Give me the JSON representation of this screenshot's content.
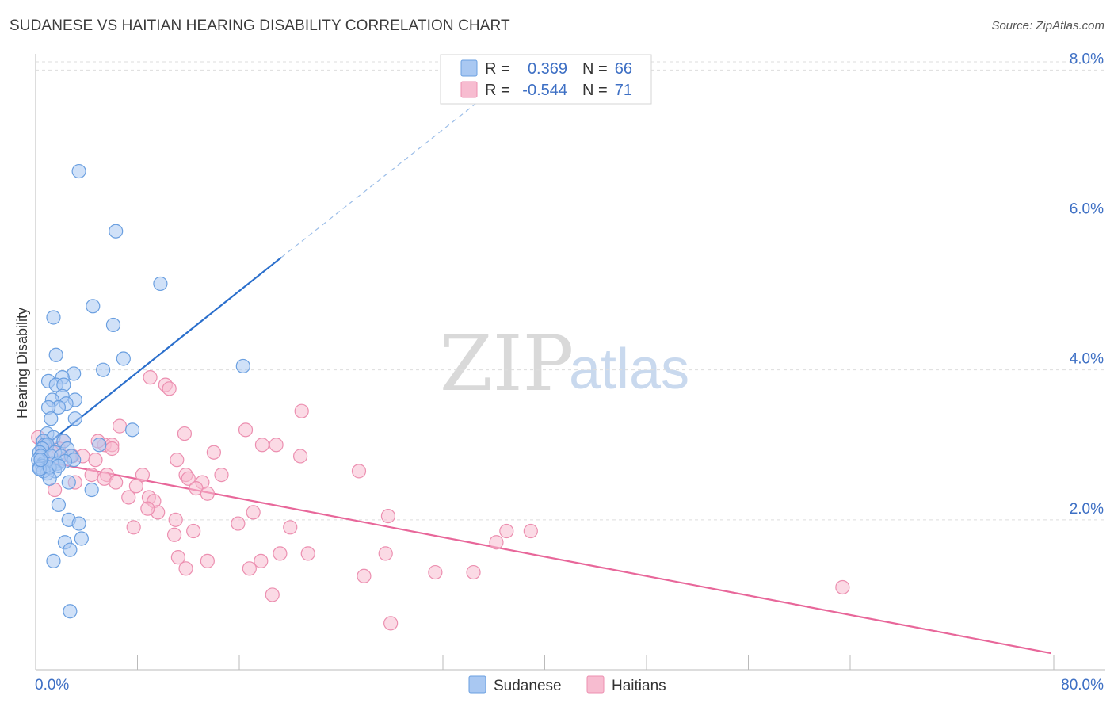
{
  "header": {
    "title": "SUDANESE VS HAITIAN HEARING DISABILITY CORRELATION CHART",
    "source": "Source: ZipAtlas.com"
  },
  "watermark": {
    "zip": "ZIP",
    "atlas": "atlas"
  },
  "colors": {
    "sudanese_fill": "#a9c8f2",
    "sudanese_stroke": "#6a9fe0",
    "sudanese_line": "#2b6fcc",
    "haitians_fill": "#f7bcd0",
    "haitians_stroke": "#ec8fb0",
    "haitians_line": "#e8679a",
    "tick_text": "#3d6fc4",
    "grid": "#dddddd"
  },
  "legend": {
    "rows": [
      {
        "r_label": "R =",
        "r_value": "0.369",
        "n_label": "N =",
        "n_value": "66"
      },
      {
        "r_label": "R =",
        "r_value": "-0.544",
        "n_label": "N =",
        "n_value": "71"
      }
    ],
    "placement": "top-center"
  },
  "chart_data": {
    "type": "scatter",
    "title": "SUDANESE VS HAITIAN HEARING DISABILITY CORRELATION CHART",
    "xlabel": "",
    "ylabel": "Hearing Disability",
    "xlim": [
      0,
      80
    ],
    "ylim": [
      0,
      8.3
    ],
    "x_tick_labels": [
      "0.0%",
      "80.0%"
    ],
    "y_ticks": [
      2,
      4,
      6,
      8
    ],
    "y_tick_labels": [
      "2.0%",
      "4.0%",
      "6.0%",
      "8.0%"
    ],
    "grid": true,
    "series": [
      {
        "name": "Sudanese",
        "trend": {
          "x_start": 0.1,
          "y_start": 2.9,
          "x_solid_end": 19.3,
          "y_solid_end": 5.5,
          "x_end": 36.8,
          "y_end": 7.85
        },
        "points": [
          [
            3.4,
            6.65
          ],
          [
            6.3,
            5.85
          ],
          [
            9.8,
            5.15
          ],
          [
            4.5,
            4.85
          ],
          [
            6.1,
            4.6
          ],
          [
            1.4,
            4.7
          ],
          [
            16.3,
            4.05
          ],
          [
            1.6,
            4.2
          ],
          [
            6.9,
            4.15
          ],
          [
            5.3,
            4.0
          ],
          [
            3.0,
            3.95
          ],
          [
            2.1,
            3.9
          ],
          [
            1.0,
            3.85
          ],
          [
            1.6,
            3.8
          ],
          [
            2.2,
            3.8
          ],
          [
            2.1,
            3.65
          ],
          [
            1.3,
            3.6
          ],
          [
            3.1,
            3.6
          ],
          [
            2.4,
            3.55
          ],
          [
            1.8,
            3.5
          ],
          [
            1.0,
            3.5
          ],
          [
            1.2,
            3.35
          ],
          [
            3.1,
            3.35
          ],
          [
            7.6,
            3.2
          ],
          [
            0.9,
            3.15
          ],
          [
            1.4,
            3.1
          ],
          [
            2.2,
            3.05
          ],
          [
            0.6,
            3.05
          ],
          [
            0.7,
            3.0
          ],
          [
            0.9,
            3.0
          ],
          [
            5.0,
            3.0
          ],
          [
            0.5,
            2.95
          ],
          [
            0.3,
            2.9
          ],
          [
            2.5,
            2.95
          ],
          [
            1.5,
            2.9
          ],
          [
            0.4,
            2.85
          ],
          [
            1.2,
            2.85
          ],
          [
            2.0,
            2.85
          ],
          [
            2.8,
            2.85
          ],
          [
            3.0,
            2.8
          ],
          [
            0.2,
            2.8
          ],
          [
            0.6,
            2.75
          ],
          [
            1.3,
            2.75
          ],
          [
            1.7,
            2.75
          ],
          [
            2.3,
            2.78
          ],
          [
            0.5,
            2.72
          ],
          [
            1.0,
            2.7
          ],
          [
            0.3,
            2.7
          ],
          [
            1.5,
            2.65
          ],
          [
            0.9,
            2.62
          ],
          [
            0.6,
            2.65
          ],
          [
            0.3,
            2.68
          ],
          [
            1.1,
            2.7
          ],
          [
            1.8,
            2.72
          ],
          [
            1.1,
            2.55
          ],
          [
            2.6,
            2.5
          ],
          [
            4.4,
            2.4
          ],
          [
            1.8,
            2.2
          ],
          [
            2.6,
            2.0
          ],
          [
            3.4,
            1.95
          ],
          [
            3.6,
            1.75
          ],
          [
            2.3,
            1.7
          ],
          [
            2.7,
            1.6
          ],
          [
            1.4,
            1.45
          ],
          [
            2.7,
            0.78
          ],
          [
            0.4,
            2.8
          ]
        ]
      },
      {
        "name": "Haitians",
        "trend": {
          "x_start": 0.1,
          "y_start": 2.8,
          "x_end": 79.8,
          "y_end": 0.22
        },
        "points": [
          [
            0.2,
            3.1
          ],
          [
            0.8,
            3.0
          ],
          [
            2.2,
            3.05
          ],
          [
            5.4,
            3.0
          ],
          [
            6.0,
            3.0
          ],
          [
            4.9,
            3.05
          ],
          [
            6.6,
            3.25
          ],
          [
            0.6,
            2.95
          ],
          [
            1.8,
            2.95
          ],
          [
            2.7,
            2.85
          ],
          [
            4.7,
            2.8
          ],
          [
            2.9,
            2.85
          ],
          [
            1.3,
            2.9
          ],
          [
            6.0,
            2.95
          ],
          [
            8.4,
            2.6
          ],
          [
            5.6,
            2.6
          ],
          [
            4.4,
            2.6
          ],
          [
            3.1,
            2.5
          ],
          [
            1.5,
            2.4
          ],
          [
            5.4,
            2.55
          ],
          [
            6.3,
            2.5
          ],
          [
            7.9,
            2.45
          ],
          [
            7.3,
            2.3
          ],
          [
            8.9,
            2.3
          ],
          [
            9.3,
            2.25
          ],
          [
            9.6,
            2.1
          ],
          [
            8.8,
            2.15
          ],
          [
            7.7,
            1.9
          ],
          [
            11.8,
            2.6
          ],
          [
            11.1,
            2.8
          ],
          [
            12.0,
            2.55
          ],
          [
            13.1,
            2.5
          ],
          [
            12.6,
            2.42
          ],
          [
            14.0,
            2.9
          ],
          [
            14.6,
            2.6
          ],
          [
            13.5,
            2.35
          ],
          [
            11.7,
            3.15
          ],
          [
            10.2,
            3.8
          ],
          [
            10.5,
            3.75
          ],
          [
            9.0,
            3.9
          ],
          [
            16.5,
            3.2
          ],
          [
            17.8,
            3.0
          ],
          [
            18.9,
            3.0
          ],
          [
            20.9,
            3.45
          ],
          [
            20.8,
            2.85
          ],
          [
            17.1,
            2.1
          ],
          [
            15.9,
            1.95
          ],
          [
            11.0,
            2.0
          ],
          [
            12.4,
            1.85
          ],
          [
            11.2,
            1.5
          ],
          [
            10.9,
            1.8
          ],
          [
            13.5,
            1.45
          ],
          [
            11.8,
            1.35
          ],
          [
            16.8,
            1.35
          ],
          [
            17.7,
            1.45
          ],
          [
            19.2,
            1.55
          ],
          [
            20.0,
            1.9
          ],
          [
            21.4,
            1.55
          ],
          [
            25.8,
            1.25
          ],
          [
            27.5,
            1.55
          ],
          [
            25.4,
            2.65
          ],
          [
            27.7,
            2.05
          ],
          [
            31.4,
            1.3
          ],
          [
            34.4,
            1.3
          ],
          [
            36.2,
            1.7
          ],
          [
            37.0,
            1.85
          ],
          [
            38.9,
            1.85
          ],
          [
            18.6,
            1.0
          ],
          [
            27.9,
            0.62
          ],
          [
            63.4,
            1.1
          ],
          [
            3.7,
            2.85
          ]
        ]
      }
    ]
  }
}
